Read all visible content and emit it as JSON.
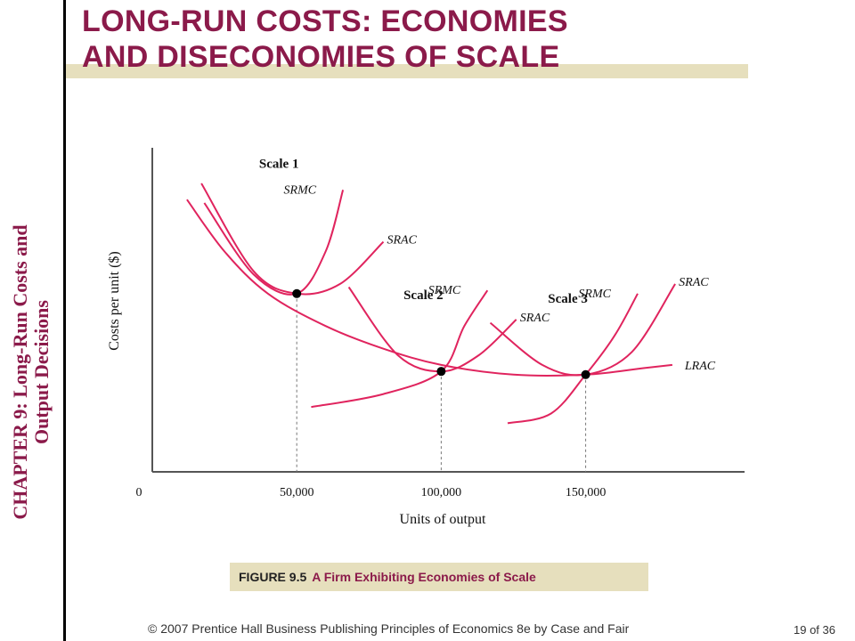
{
  "slide": {
    "title_line1": "LONG-RUN COSTS: ECONOMIES",
    "title_line2": "AND DISECONOMIES OF SCALE",
    "side_label_line1": "CHAPTER 9:  Long-Run Costs and",
    "side_label_line2": "Output Decisions",
    "caption_number": "FIGURE 9.5",
    "caption_text": "A Firm Exhibiting Economies of Scale",
    "footer": "© 2007 Prentice Hall Business Publishing   Principles of Economics 8e by Case and Fair",
    "page": "19 of 36"
  },
  "colors": {
    "title": "#8b1a4a",
    "curve": "#e0245e",
    "band": "#e6dfbd",
    "axis": "#555555"
  },
  "chart_data": {
    "type": "line",
    "xlabel": "Units of output",
    "ylabel": "Costs per unit ($)",
    "x_ticks": [
      {
        "value": 0,
        "label": "0"
      },
      {
        "value": 50000,
        "label": "50,000"
      },
      {
        "value": 100000,
        "label": "100,000"
      },
      {
        "value": 150000,
        "label": "150,000"
      }
    ],
    "xlim": [
      0,
      205000
    ],
    "ylim": [
      0,
      100
    ],
    "grid": false,
    "scales": [
      {
        "name": "Scale 1",
        "srac_label": "SRAC",
        "srmc_label": "SRMC",
        "srac": [
          [
            17000,
            89
          ],
          [
            35000,
            62
          ],
          [
            50000,
            55
          ],
          [
            65000,
            58
          ],
          [
            80000,
            71
          ]
        ],
        "srmc": [
          [
            18000,
            83
          ],
          [
            35000,
            61
          ],
          [
            50000,
            55
          ],
          [
            60000,
            68
          ],
          [
            66000,
            87
          ]
        ],
        "min_point": [
          50000,
          55
        ]
      },
      {
        "name": "Scale 2",
        "srac_label": "SRAC",
        "srmc_label": "SRMC",
        "srac": [
          [
            68000,
            57
          ],
          [
            85000,
            36
          ],
          [
            100000,
            31
          ],
          [
            113000,
            36
          ],
          [
            126000,
            47
          ]
        ],
        "srmc": [
          [
            55000,
            20
          ],
          [
            80000,
            24
          ],
          [
            100000,
            31
          ],
          [
            108000,
            45
          ],
          [
            116000,
            56
          ]
        ],
        "min_point": [
          100000,
          31
        ]
      },
      {
        "name": "Scale 3",
        "srac_label": "SRAC",
        "srmc_label": "SRMC",
        "srac": [
          [
            117000,
            46
          ],
          [
            135000,
            33
          ],
          [
            150000,
            30
          ],
          [
            166000,
            37
          ],
          [
            181000,
            58
          ]
        ],
        "srmc": [
          [
            123000,
            15
          ],
          [
            138000,
            18
          ],
          [
            150000,
            30
          ],
          [
            160000,
            42
          ],
          [
            168000,
            55
          ]
        ],
        "min_point": [
          150000,
          30
        ]
      }
    ],
    "lrac": {
      "label": "LRAC",
      "points": [
        [
          12000,
          84
        ],
        [
          25000,
          68
        ],
        [
          40000,
          55
        ],
        [
          60000,
          45
        ],
        [
          80000,
          38
        ],
        [
          100000,
          33
        ],
        [
          125000,
          30
        ],
        [
          150000,
          30
        ],
        [
          170000,
          32
        ],
        [
          180000,
          33
        ]
      ]
    }
  }
}
